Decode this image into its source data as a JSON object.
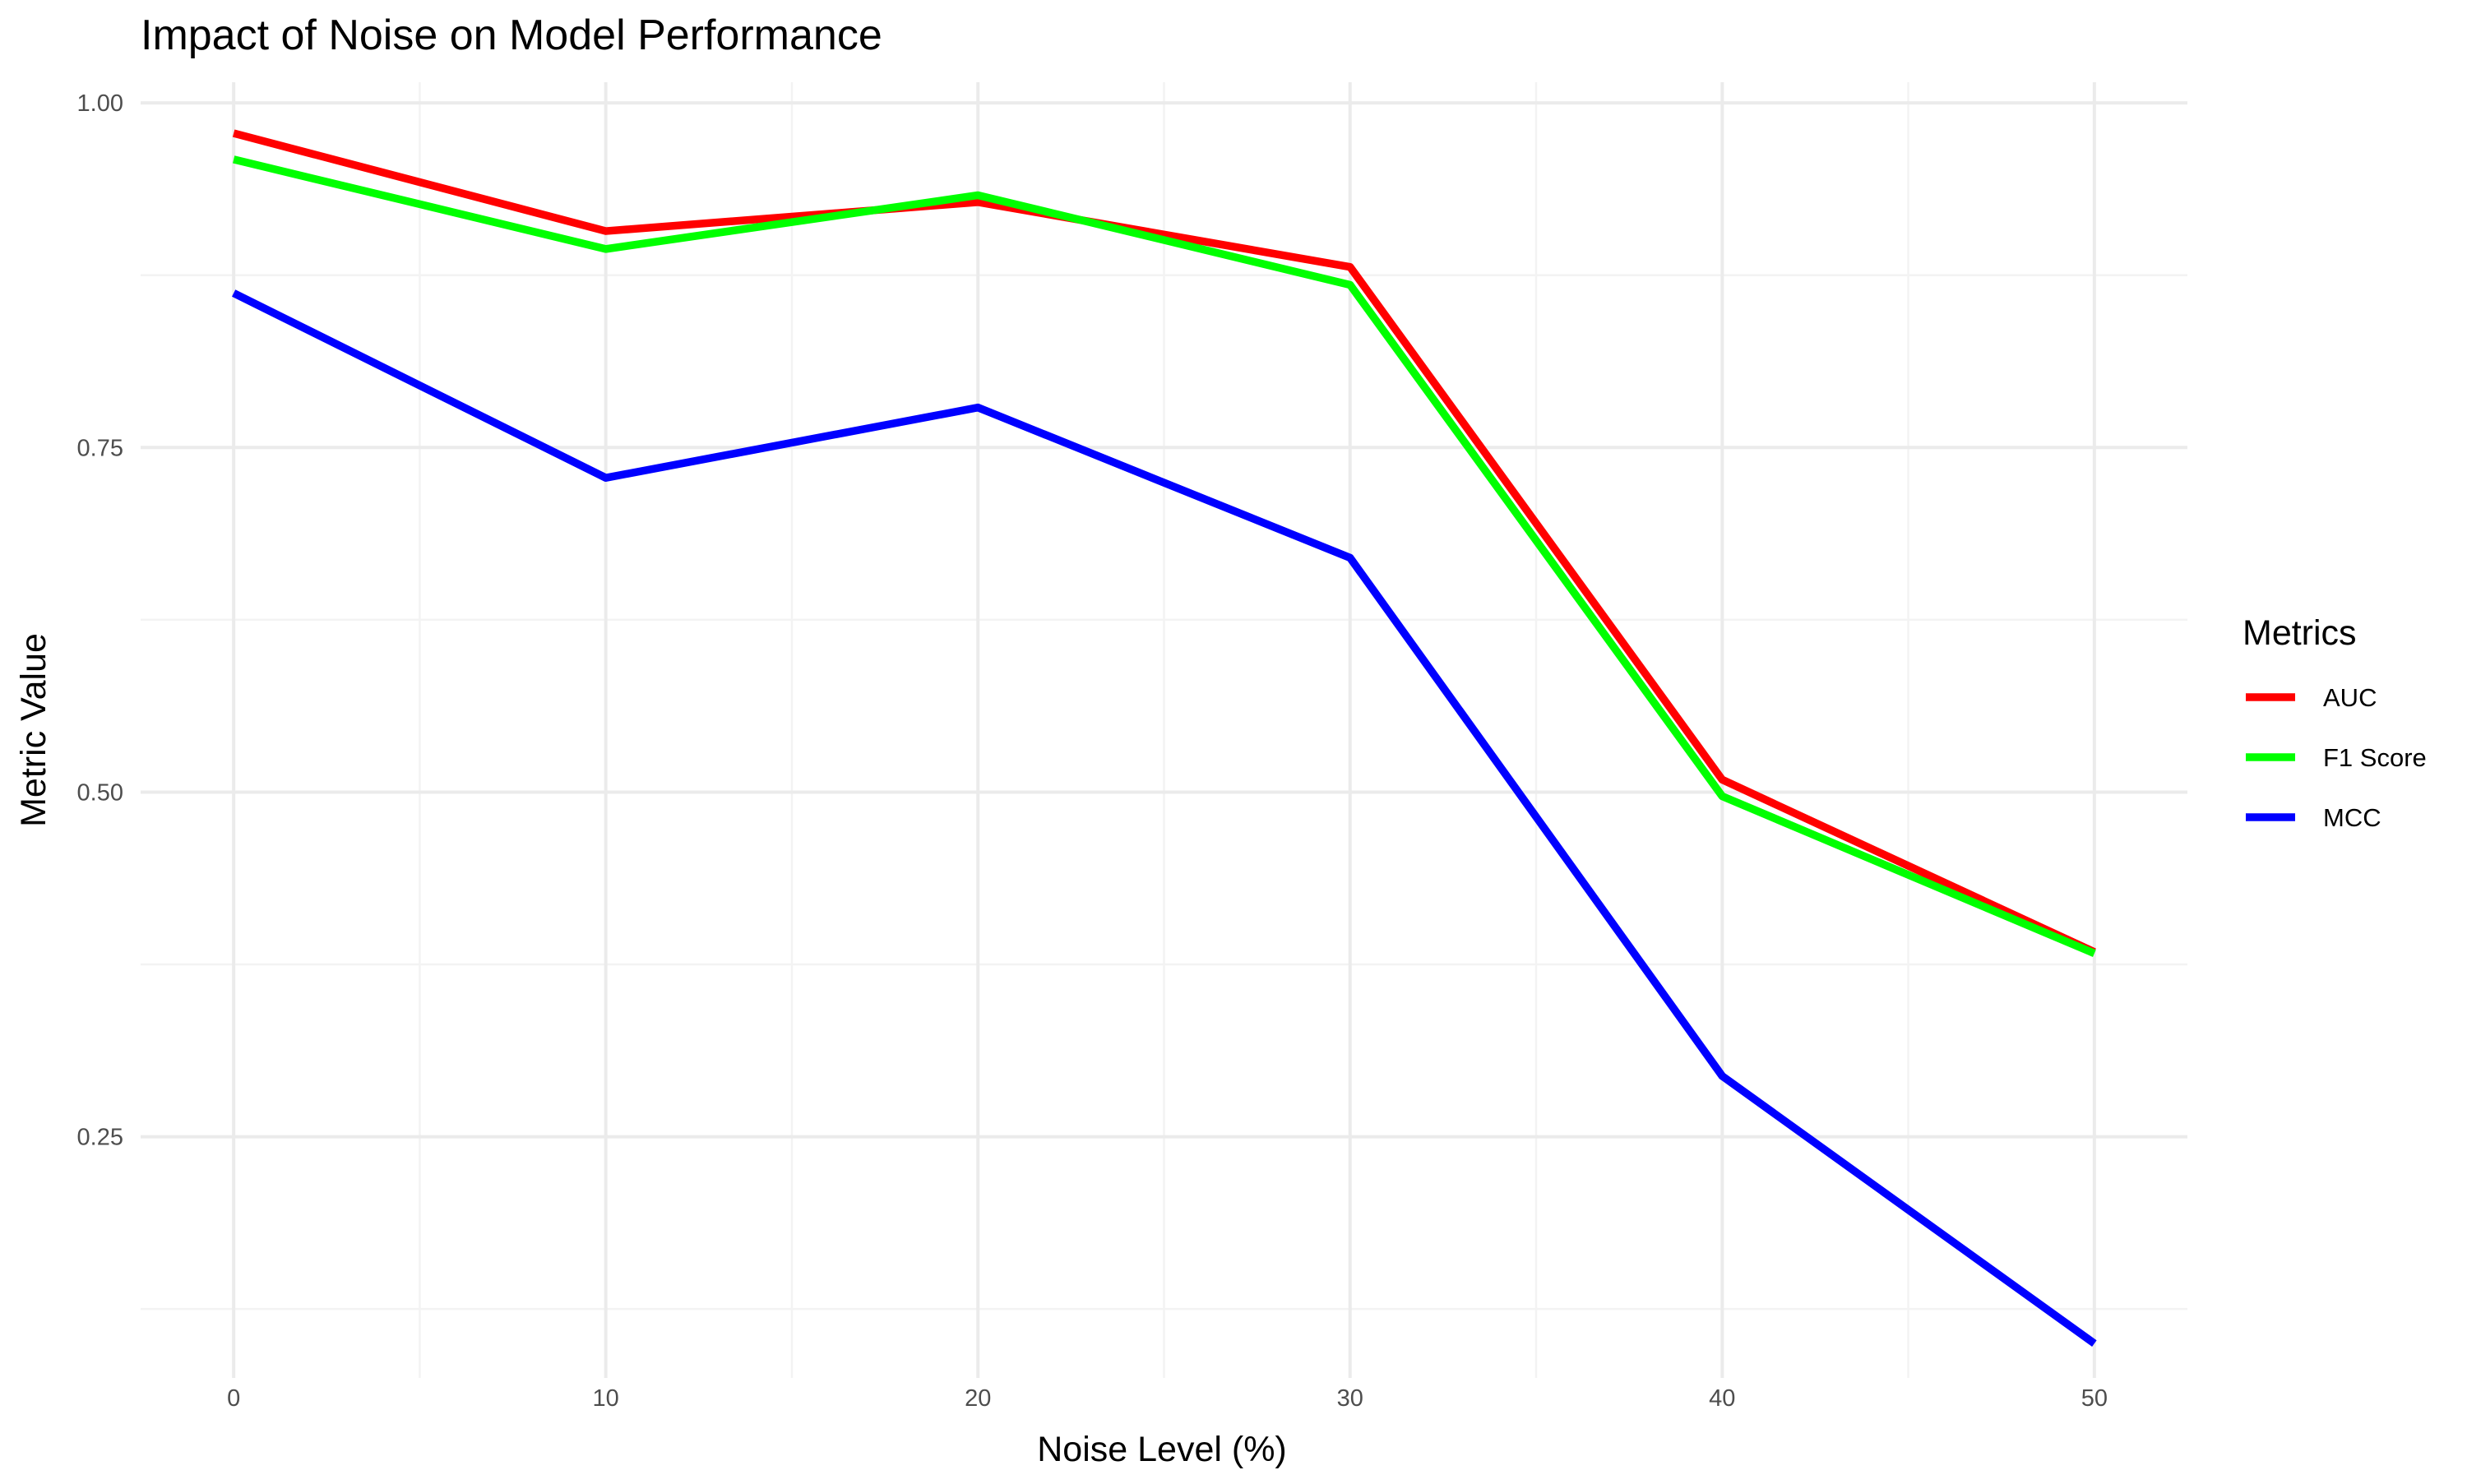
{
  "chart_data": {
    "type": "line",
    "title": "Impact of Noise on Model Performance",
    "xlabel": "Noise Level (%)",
    "ylabel": "Metric Value",
    "x": [
      0,
      10,
      20,
      30,
      40,
      50
    ],
    "x_ticks": [
      "0",
      "10",
      "20",
      "30",
      "40",
      "50"
    ],
    "y_ticks": [
      "0.25",
      "0.50",
      "0.75",
      "1.00"
    ],
    "xlim": [
      -2.5,
      52.5
    ],
    "ylim": [
      0.075,
      1.015
    ],
    "grid": true,
    "legend": {
      "title": "Metrics",
      "position": "right"
    },
    "series": [
      {
        "name": "AUC",
        "color": "#ff0000",
        "values": [
          0.978,
          0.907,
          0.928,
          0.881,
          0.509,
          0.384
        ]
      },
      {
        "name": "F1 Score",
        "color": "#00ff00",
        "values": [
          0.959,
          0.894,
          0.933,
          0.868,
          0.497,
          0.383
        ]
      },
      {
        "name": "MCC",
        "color": "#0000ff",
        "values": [
          0.862,
          0.728,
          0.779,
          0.67,
          0.294,
          0.1
        ]
      }
    ]
  }
}
